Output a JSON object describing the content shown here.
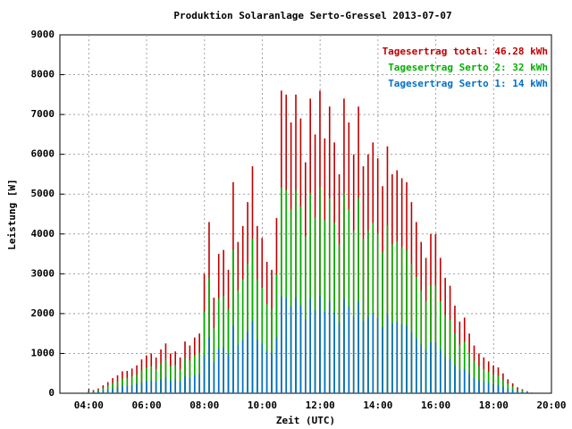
{
  "chart_data": {
    "type": "impulse",
    "title": "Produktion Solaranlage Serto-Gressel 2013-07-07",
    "x_label": "Zeit (UTC)",
    "y_label": "Leistung [W]",
    "x": [
      "04:00",
      "04:10",
      "04:20",
      "04:30",
      "04:40",
      "04:50",
      "05:00",
      "05:10",
      "05:20",
      "05:30",
      "05:40",
      "05:50",
      "06:00",
      "06:10",
      "06:20",
      "06:30",
      "06:40",
      "06:50",
      "07:00",
      "07:10",
      "07:20",
      "07:30",
      "07:40",
      "07:50",
      "08:00",
      "08:10",
      "08:20",
      "08:30",
      "08:40",
      "08:50",
      "09:00",
      "09:10",
      "09:20",
      "09:30",
      "09:40",
      "09:50",
      "10:00",
      "10:10",
      "10:20",
      "10:30",
      "10:40",
      "10:50",
      "11:00",
      "11:10",
      "11:20",
      "11:30",
      "11:40",
      "11:50",
      "12:00",
      "12:10",
      "12:20",
      "12:30",
      "12:40",
      "12:50",
      "13:00",
      "13:10",
      "13:20",
      "13:30",
      "13:40",
      "13:50",
      "14:00",
      "14:10",
      "14:20",
      "14:30",
      "14:40",
      "14:50",
      "15:00",
      "15:10",
      "15:20",
      "15:30",
      "15:40",
      "15:50",
      "16:00",
      "16:10",
      "16:20",
      "16:30",
      "16:40",
      "16:50",
      "17:00",
      "17:10",
      "17:20",
      "17:30",
      "17:40",
      "17:50",
      "18:00",
      "18:10",
      "18:20",
      "18:30",
      "18:40",
      "18:50",
      "19:00",
      "19:10",
      "19:20"
    ],
    "series": [
      {
        "name": "Tagesertrag total: 46.28 kWh",
        "color": "#c00000",
        "values": [
          50,
          80,
          120,
          200,
          280,
          380,
          450,
          550,
          560,
          620,
          700,
          850,
          950,
          1000,
          900,
          1100,
          1250,
          1000,
          1050,
          900,
          1300,
          1200,
          1400,
          1500,
          3000,
          4300,
          2400,
          3500,
          3600,
          3100,
          5300,
          3800,
          4200,
          4800,
          5700,
          4200,
          3900,
          3300,
          3100,
          4400,
          7600,
          7500,
          6800,
          7500,
          6900,
          5800,
          7400,
          6500,
          7600,
          6400,
          7200,
          6300,
          5500,
          7400,
          6800,
          6000,
          7200,
          5700,
          6000,
          6300,
          5900,
          5200,
          6200,
          5500,
          5600,
          5400,
          5300,
          4800,
          4300,
          3800,
          3400,
          4000,
          4000,
          3400,
          2900,
          2700,
          2200,
          1800,
          1900,
          1500,
          1200,
          1000,
          900,
          800,
          700,
          650,
          500,
          350,
          250,
          150,
          100,
          50,
          20
        ]
      },
      {
        "name": "Tagesertrag Serto 2: 32 kWh",
        "color": "#00b000",
        "values": [
          30,
          50,
          80,
          130,
          190,
          260,
          300,
          370,
          380,
          420,
          470,
          580,
          640,
          680,
          610,
          750,
          850,
          680,
          710,
          610,
          880,
          820,
          950,
          1020,
          2040,
          2900,
          1630,
          2380,
          2450,
          2100,
          3600,
          2580,
          2860,
          3260,
          3880,
          2860,
          2650,
          2240,
          2110,
          2990,
          5170,
          5100,
          4620,
          5100,
          4690,
          3940,
          5030,
          4420,
          5170,
          4350,
          4900,
          4280,
          3740,
          5030,
          4620,
          4080,
          4900,
          3880,
          4080,
          4280,
          4010,
          3540,
          4220,
          3740,
          3810,
          3670,
          3600,
          3260,
          2920,
          2580,
          2310,
          2720,
          2720,
          2310,
          1970,
          1840,
          1500,
          1220,
          1290,
          1020,
          820,
          680,
          610,
          540,
          480,
          440,
          340,
          240,
          170,
          100,
          70,
          30,
          10
        ]
      },
      {
        "name": "Tagesertrag Serto 1: 14 kWh",
        "color": "#0070c8",
        "values": [
          20,
          30,
          40,
          70,
          90,
          120,
          150,
          180,
          180,
          200,
          230,
          270,
          310,
          320,
          290,
          350,
          400,
          320,
          340,
          290,
          420,
          380,
          450,
          480,
          960,
          1400,
          770,
          1120,
          1150,
          1000,
          1700,
          1220,
          1340,
          1540,
          1820,
          1340,
          1250,
          1060,
          990,
          1410,
          2430,
          2400,
          2180,
          2400,
          2210,
          1860,
          2370,
          2080,
          2430,
          2050,
          2300,
          2020,
          1760,
          2370,
          2180,
          1920,
          2300,
          1820,
          1920,
          2020,
          1890,
          1660,
          1980,
          1760,
          1790,
          1730,
          1700,
          1540,
          1380,
          1220,
          1090,
          1280,
          1280,
          1090,
          930,
          860,
          700,
          580,
          610,
          480,
          380,
          320,
          290,
          260,
          220,
          210,
          160,
          110,
          80,
          50,
          30,
          20,
          10
        ]
      }
    ],
    "xlim": [
      "03:00",
      "20:00"
    ],
    "xticks": [
      "04:00",
      "06:00",
      "08:00",
      "10:00",
      "12:00",
      "14:00",
      "16:00",
      "18:00",
      "20:00"
    ],
    "ylim": [
      0,
      9000
    ],
    "yticks": [
      0,
      1000,
      2000,
      3000,
      4000,
      5000,
      6000,
      7000,
      8000,
      9000
    ],
    "grid": true,
    "legend": "top-right"
  }
}
